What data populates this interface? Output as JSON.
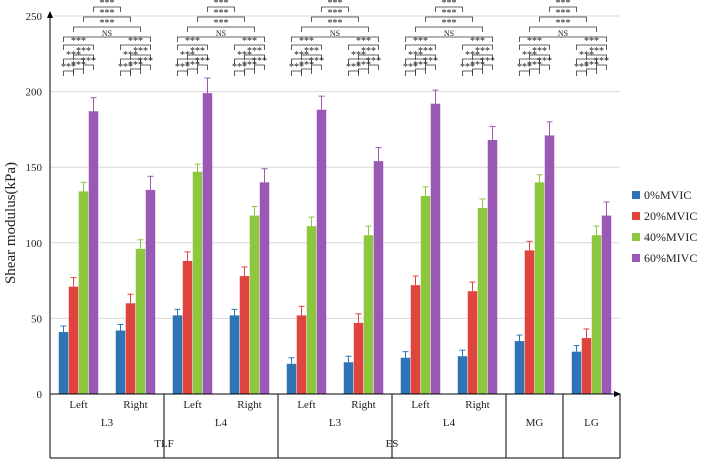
{
  "chart_data": {
    "type": "bar",
    "ylabel": "Shear modulus(kPa)",
    "ylim": [
      0,
      250
    ],
    "yticks": [
      0,
      50,
      100,
      150,
      200,
      250
    ],
    "grid": true,
    "legend_position": "right",
    "categories": [
      "Left",
      "Right",
      "Left",
      "Right",
      "Left",
      "Right",
      "Left",
      "Right",
      "",
      ""
    ],
    "subgroups": [
      {
        "label": "L3",
        "span": [
          0,
          1
        ]
      },
      {
        "label": "L4",
        "span": [
          2,
          3
        ]
      },
      {
        "label": "L3",
        "span": [
          4,
          5
        ]
      },
      {
        "label": "L4",
        "span": [
          6,
          7
        ]
      },
      {
        "label": "MG",
        "span": [
          8,
          8
        ]
      },
      {
        "label": "LG",
        "span": [
          9,
          9
        ]
      }
    ],
    "groups": [
      {
        "label": "TLF",
        "span": [
          0,
          3
        ]
      },
      {
        "label": "ES",
        "span": [
          4,
          7
        ]
      },
      {
        "label": "",
        "span": [
          8,
          9
        ]
      }
    ],
    "series": [
      {
        "name": "0%MVIC",
        "color": "#2e75b6",
        "values": [
          41,
          42,
          52,
          52,
          20,
          21,
          24,
          25,
          35,
          28
        ],
        "errors": [
          4,
          4,
          4,
          4,
          4,
          4,
          4,
          4,
          4,
          4
        ]
      },
      {
        "name": "20%MVIC",
        "color": "#e0443e",
        "values": [
          71,
          60,
          88,
          78,
          52,
          47,
          72,
          68,
          95,
          37
        ],
        "errors": [
          6,
          6,
          6,
          6,
          6,
          6,
          6,
          6,
          6,
          6
        ]
      },
      {
        "name": "40%MVIC",
        "color": "#8dc63f",
        "values": [
          134,
          96,
          147,
          118,
          111,
          105,
          131,
          123,
          140,
          105
        ],
        "errors": [
          6,
          6,
          5,
          6,
          6,
          6,
          6,
          6,
          5,
          6
        ]
      },
      {
        "name": "60%MIVC",
        "color": "#9b59b6",
        "values": [
          187,
          135,
          199,
          140,
          188,
          154,
          192,
          168,
          171,
          118
        ],
        "errors": [
          9,
          9,
          10,
          9,
          9,
          9,
          9,
          9,
          9,
          9
        ]
      }
    ],
    "significance": {
      "label": "***",
      "ns_label": "NS"
    }
  }
}
